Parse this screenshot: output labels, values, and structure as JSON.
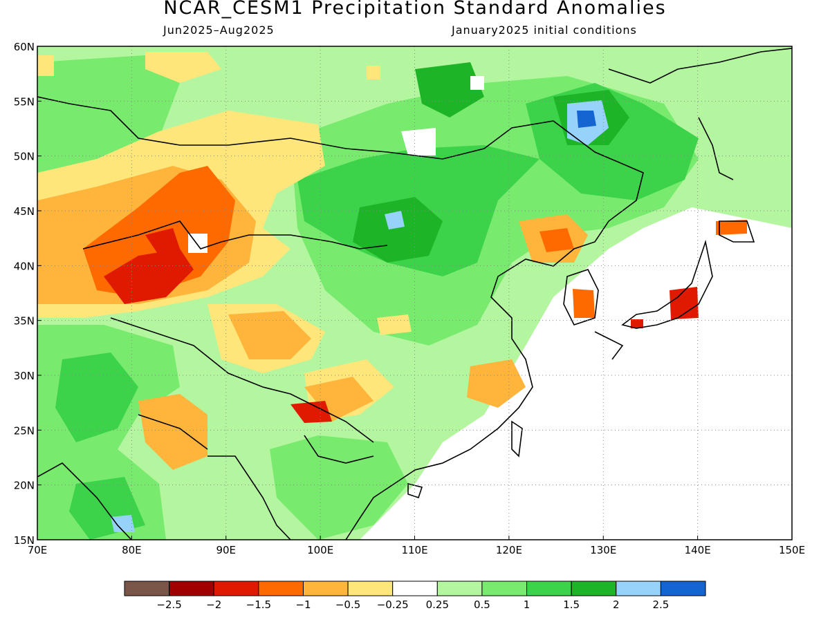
{
  "title": "NCAR_CESM1 Precipitation Standard Anomalies",
  "subtitle_left": "Jun2025–Aug2025",
  "subtitle_right": "January2025 initial conditions",
  "axes": {
    "lon_range": [
      70,
      150
    ],
    "lat_range": [
      15,
      60
    ],
    "lon_ticks": [
      "70E",
      "80E",
      "90E",
      "100E",
      "110E",
      "120E",
      "130E",
      "140E",
      "150E"
    ],
    "lat_ticks": [
      "15N",
      "20N",
      "25N",
      "30N",
      "35N",
      "40N",
      "45N",
      "50N",
      "55N",
      "60N"
    ],
    "gridlines": "dotted"
  },
  "legend": {
    "placement": "bottom",
    "colors": [
      "#7a5648",
      "#a00000",
      "#e01a00",
      "#ff6a00",
      "#ffb43c",
      "#ffe67a",
      "#ffffff",
      "#b4f5a0",
      "#78eb6e",
      "#3cd24a",
      "#1eb428",
      "#96d2fa",
      "#1464d2"
    ],
    "labels": [
      "−2.5",
      "−2",
      "−1.5",
      "−1",
      "−0.5",
      "−0.25",
      "0.25",
      "0.5",
      "1",
      "1.5",
      "2",
      "2.5"
    ]
  },
  "anomaly_regions": [
    {
      "level": 0.5,
      "lon": [
        70,
        150
      ],
      "lat": [
        15,
        60
      ]
    },
    {
      "level": 1,
      "lon": [
        72,
        86
      ],
      "lat": [
        28,
        58
      ]
    },
    {
      "level": 1,
      "lon": [
        100,
        136
      ],
      "lat": [
        35,
        58
      ]
    },
    {
      "level": 1.5,
      "lon": [
        104,
        126
      ],
      "lat": [
        40,
        50
      ]
    },
    {
      "level": 1.5,
      "lon": [
        114,
        134
      ],
      "lat": [
        49,
        56
      ]
    },
    {
      "level": 2,
      "lon": [
        118,
        132
      ],
      "lat": [
        51,
        55
      ]
    },
    {
      "level": 2.5,
      "lon": [
        126,
        130
      ],
      "lat": [
        52,
        55
      ]
    },
    {
      "level": 1.5,
      "lon": [
        76,
        84
      ],
      "lat": [
        15,
        22
      ]
    },
    {
      "level": -0.5,
      "lon": [
        70,
        100
      ],
      "lat": [
        34,
        50
      ]
    },
    {
      "level": -1,
      "lon": [
        75,
        92
      ],
      "lat": [
        36,
        48
      ]
    },
    {
      "level": -1.5,
      "lon": [
        78,
        90
      ],
      "lat": [
        37,
        43
      ]
    },
    {
      "level": -0.5,
      "lon": [
        92,
        105
      ],
      "lat": [
        26,
        35
      ]
    },
    {
      "level": -1,
      "lon": [
        82,
        90
      ],
      "lat": [
        22,
        27
      ]
    },
    {
      "level": -1,
      "lon": [
        124,
        128
      ],
      "lat": [
        40,
        44
      ]
    },
    {
      "level": -1.5,
      "lon": [
        126,
        129
      ],
      "lat": [
        35,
        37
      ]
    },
    {
      "level": -1.5,
      "lon": [
        137,
        140
      ],
      "lat": [
        35,
        38
      ]
    }
  ]
}
